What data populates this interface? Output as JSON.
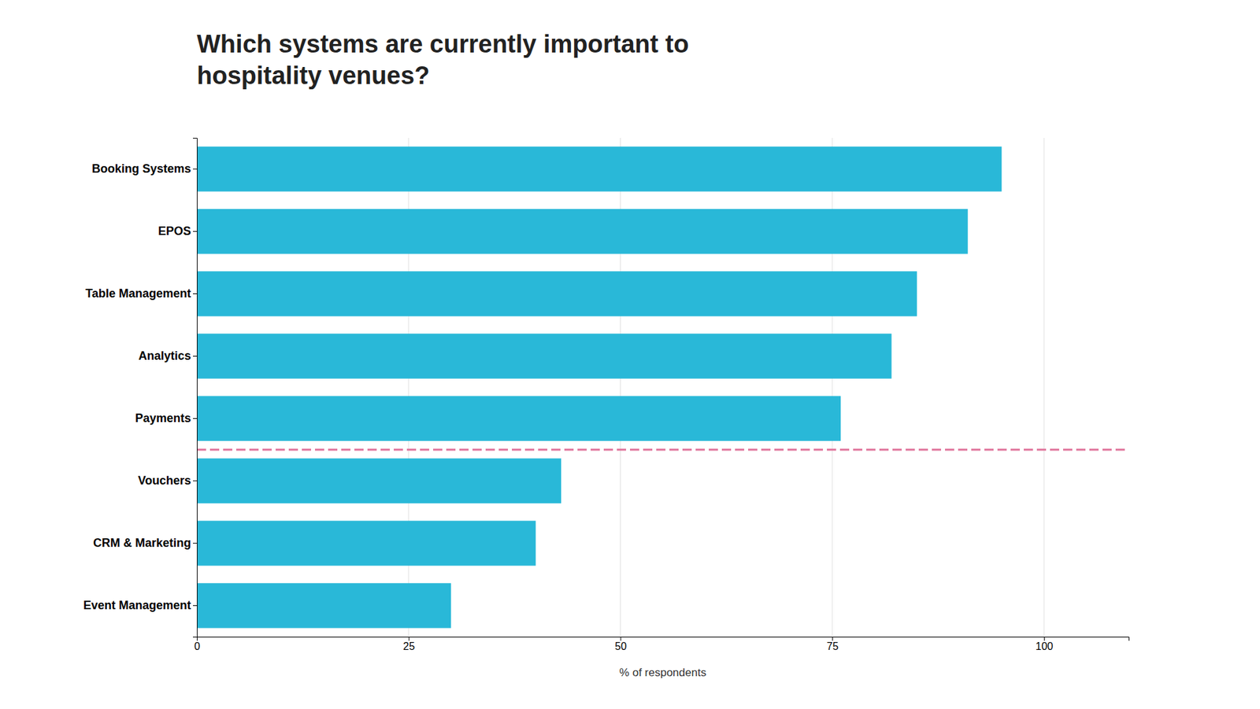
{
  "chart_data": {
    "type": "bar",
    "orientation": "horizontal",
    "title": "Which systems are currently important to\nhospitality venues?",
    "categories": [
      "Booking Systems",
      "EPOS",
      "Table Management",
      "Analytics",
      "Payments",
      "Vouchers",
      "CRM & Marketing",
      "Event Management"
    ],
    "values": [
      95,
      91,
      85,
      82,
      76,
      43,
      40,
      30
    ],
    "color": "#29B8D8",
    "xlabel": "% of respondents",
    "xlim": [
      0,
      110
    ],
    "xticks": [
      0,
      25,
      50,
      75,
      100
    ],
    "grid": true,
    "annotations": [
      {
        "type": "line",
        "between": [
          "Payments",
          "Vouchers"
        ],
        "color": "#E0739A",
        "line_style": "dashed"
      }
    ]
  }
}
